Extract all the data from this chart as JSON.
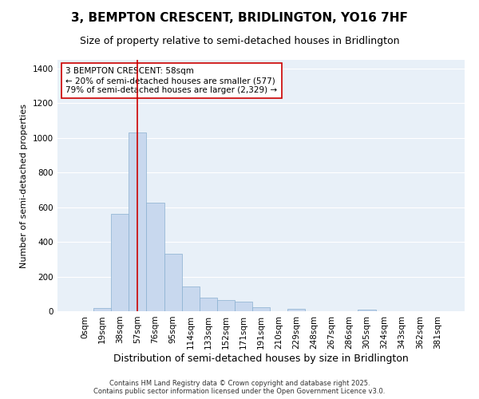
{
  "title": "3, BEMPTON CRESCENT, BRIDLINGTON, YO16 7HF",
  "subtitle": "Size of property relative to semi-detached houses in Bridlington",
  "xlabel": "Distribution of semi-detached houses by size in Bridlington",
  "ylabel": "Number of semi-detached properties",
  "categories": [
    "0sqm",
    "19sqm",
    "38sqm",
    "57sqm",
    "76sqm",
    "95sqm",
    "114sqm",
    "133sqm",
    "152sqm",
    "171sqm",
    "191sqm",
    "210sqm",
    "229sqm",
    "248sqm",
    "267sqm",
    "286sqm",
    "305sqm",
    "324sqm",
    "343sqm",
    "362sqm",
    "381sqm"
  ],
  "values": [
    0,
    20,
    560,
    1030,
    625,
    330,
    145,
    80,
    65,
    55,
    25,
    0,
    15,
    0,
    0,
    0,
    10,
    0,
    0,
    0,
    0
  ],
  "highlight_index": 3,
  "highlight_color": "#c8d8ee",
  "normal_color": "#c8d8ee",
  "highlight_edge_color": "#cc0000",
  "normal_edge_color": "#8ab0d0",
  "annotation_text": "3 BEMPTON CRESCENT: 58sqm\n← 20% of semi-detached houses are smaller (577)\n79% of semi-detached houses are larger (2,329) →",
  "annotation_box_color": "#ffffff",
  "annotation_edge_color": "#cc0000",
  "vline_x": 3,
  "ylim": [
    0,
    1450
  ],
  "yticks": [
    0,
    200,
    400,
    600,
    800,
    1000,
    1200,
    1400
  ],
  "footer": "Contains HM Land Registry data © Crown copyright and database right 2025.\nContains public sector information licensed under the Open Government Licence v3.0.",
  "bg_color": "#e8f0f8",
  "title_fontsize": 11,
  "subtitle_fontsize": 9,
  "xlabel_fontsize": 9,
  "ylabel_fontsize": 8,
  "tick_fontsize": 7.5,
  "annotation_fontsize": 7.5,
  "footer_fontsize": 6
}
